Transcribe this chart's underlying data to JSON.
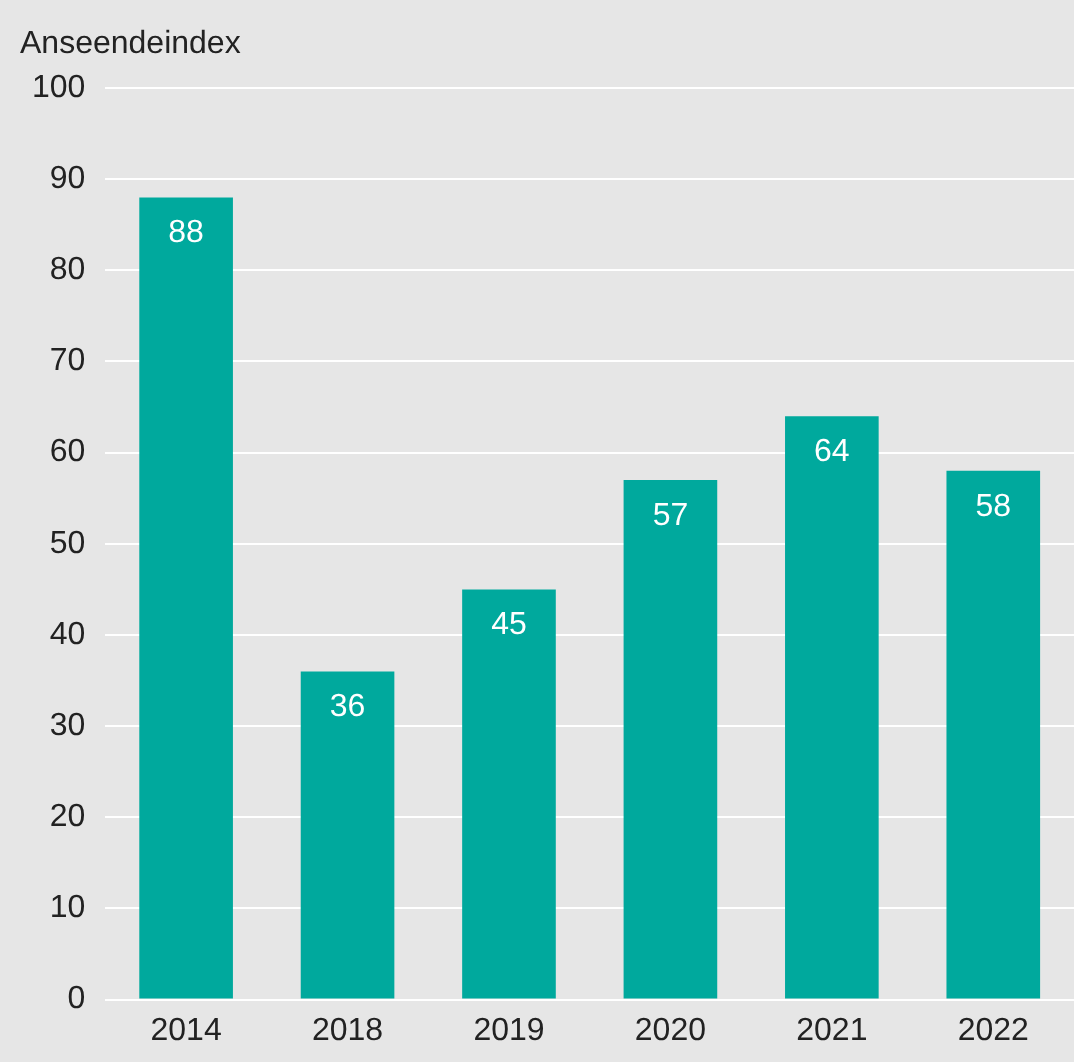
{
  "chart_data": {
    "type": "bar",
    "ylabel": "Anseendeindex",
    "categories": [
      "2014",
      "2018",
      "2019",
      "2020",
      "2021",
      "2022"
    ],
    "values": [
      88,
      36,
      45,
      57,
      64,
      58
    ],
    "color": "#00a99d",
    "ylim": [
      0,
      100
    ],
    "yticks": [
      0,
      10,
      20,
      30,
      40,
      50,
      60,
      70,
      80,
      90,
      100
    ],
    "grid": "y",
    "data_labels": true,
    "legend": false
  }
}
